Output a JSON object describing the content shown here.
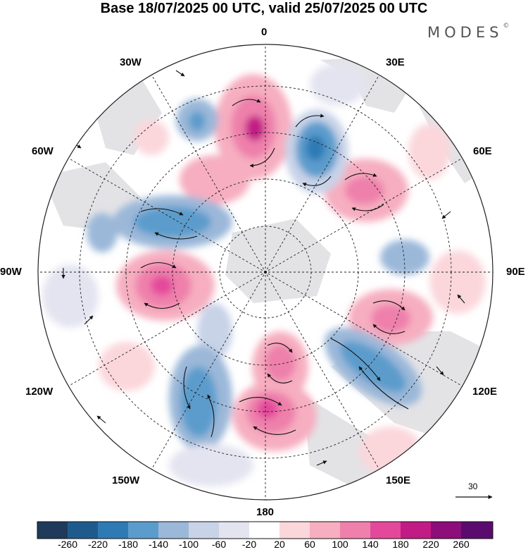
{
  "header": {
    "title": "Base 18/07/2025 00 UTC, valid 25/07/2025 00 UTC"
  },
  "brand": {
    "name": "MODES",
    "mark": "©"
  },
  "map": {
    "projection": "polar stereographic (north pole)",
    "longitude_labels": {
      "lon_0": "0",
      "lon_30e": "30E",
      "lon_60e": "60E",
      "lon_90e": "90E",
      "lon_120e": "120E",
      "lon_150e": "150E",
      "lon_180": "180",
      "lon_150w": "150W",
      "lon_120w": "120W",
      "lon_90w": "90W",
      "lon_60w": "60W",
      "lon_30w": "30W"
    }
  },
  "reference_vector": {
    "label": "30"
  },
  "colorbar": {
    "ticks": [
      "-260",
      "-220",
      "-180",
      "-140",
      "-100",
      "-60",
      "-20",
      "20",
      "60",
      "100",
      "140",
      "180",
      "220",
      "260"
    ],
    "colors": [
      "#1f3a5a",
      "#1e5b8c",
      "#2e7ab5",
      "#5b9ccc",
      "#9bb8d9",
      "#c8d3e8",
      "#e4e4f1",
      "#ffffff",
      "#fbd7dc",
      "#f6aec0",
      "#ee80ab",
      "#e4489b",
      "#c21b85",
      "#8d0d7a",
      "#5b0b6e"
    ]
  }
}
